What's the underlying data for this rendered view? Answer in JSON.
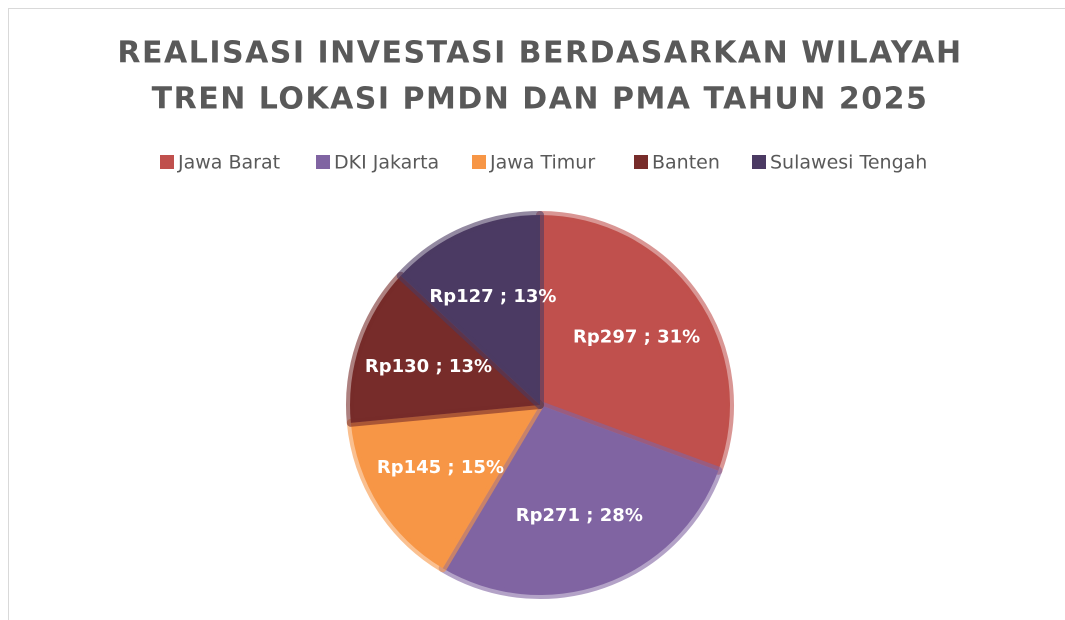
{
  "chart_data": {
    "type": "pie",
    "title": [
      "REALISASI INVESTASI BERDASARKAN WILAYAH",
      "TREN LOKASI PMDN DAN PMA TAHUN 2025"
    ],
    "categories": [
      "Jawa Barat",
      "DKI Jakarta",
      "Jawa Timur",
      "Banten",
      "Sulawesi Tengah"
    ],
    "values": [
      297,
      271,
      145,
      130,
      127
    ],
    "value_labels": [
      "Rp297 ; 31%",
      "Rp271 ; 28%",
      "Rp145 ; 15%",
      "Rp130 ; 13%",
      "Rp127 ; 13%"
    ],
    "colors": [
      "#c0504d",
      "#8064a2",
      "#f79646",
      "#772c2a",
      "#4b3a63"
    ],
    "legend": "top"
  }
}
